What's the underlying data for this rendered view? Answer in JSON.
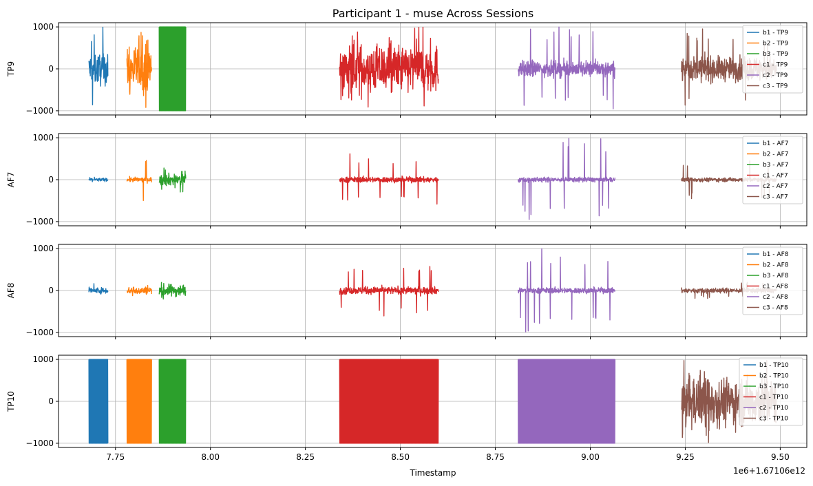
{
  "chart_data": {
    "type": "line",
    "title": "Participant 1 - muse Across Sessions",
    "xlabel": "Timestamp",
    "x_offset_label": "1e6+1.67106e12",
    "xlim": [
      7.6,
      9.57
    ],
    "x_ticks": [
      7.75,
      8.0,
      8.25,
      8.5,
      8.75,
      9.0,
      9.25,
      9.5
    ],
    "x_tick_labels": [
      "7.75",
      "8.00",
      "8.25",
      "8.50",
      "8.75",
      "9.00",
      "9.25",
      "9.50"
    ],
    "ylim": [
      -1100,
      1100
    ],
    "y_ticks": [
      1000,
      0,
      -1000
    ],
    "y_tick_labels": [
      "1000",
      "0",
      "−1000"
    ],
    "grid": true,
    "legend_position": "upper right",
    "sessions": [
      {
        "id": "b1",
        "color": "#1f77b4",
        "x_range": [
          7.68,
          7.73
        ]
      },
      {
        "id": "b2",
        "color": "#ff7f0e",
        "x_range": [
          7.78,
          7.845
        ]
      },
      {
        "id": "b3",
        "color": "#2ca02c",
        "x_range": [
          7.865,
          7.935
        ]
      },
      {
        "id": "c1",
        "color": "#d62728",
        "x_range": [
          8.34,
          8.6
        ]
      },
      {
        "id": "c2",
        "color": "#9467bd",
        "x_range": [
          8.81,
          9.065
        ]
      },
      {
        "id": "c3",
        "color": "#8c564b",
        "x_range": [
          9.24,
          9.49
        ]
      }
    ],
    "panels": [
      {
        "ylabel": "TP9",
        "legend": [
          "b1 - TP9",
          "b2 - TP9",
          "b3 - TP9",
          "c1 - TP9",
          "c2 - TP9",
          "c3 - TP9"
        ],
        "amplitude": [
          {
            "session": "b1",
            "typical": 400,
            "peak": 1000
          },
          {
            "session": "b2",
            "typical": 600,
            "peak": 1000
          },
          {
            "session": "b3",
            "typical": 1000,
            "peak": 1000
          },
          {
            "session": "c1",
            "typical": 600,
            "peak": 1000
          },
          {
            "session": "c2",
            "typical": 200,
            "peak": 1000
          },
          {
            "session": "c3",
            "typical": 300,
            "peak": 1000
          }
        ]
      },
      {
        "ylabel": "AF7",
        "legend": [
          "b1 - AF7",
          "b2 - AF7",
          "b3 - AF7",
          "c1 - AF7",
          "c2 - AF7",
          "c3 - AF7"
        ],
        "amplitude": [
          {
            "session": "b1",
            "typical": 40,
            "peak": 60
          },
          {
            "session": "b2",
            "typical": 60,
            "peak": 580
          },
          {
            "session": "b3",
            "typical": 150,
            "peak": 300
          },
          {
            "session": "c1",
            "typical": 70,
            "peak": 620
          },
          {
            "session": "c2",
            "typical": 60,
            "peak": 1000
          },
          {
            "session": "c3",
            "typical": 50,
            "peak": 460
          }
        ]
      },
      {
        "ylabel": "AF8",
        "legend": [
          "b1 - AF8",
          "b2 - AF8",
          "b3 - AF8",
          "c1 - AF8",
          "c2 - AF8",
          "c3 - AF8"
        ],
        "amplitude": [
          {
            "session": "b1",
            "typical": 70,
            "peak": 230
          },
          {
            "session": "b2",
            "typical": 90,
            "peak": 200
          },
          {
            "session": "b3",
            "typical": 150,
            "peak": 300
          },
          {
            "session": "c1",
            "typical": 90,
            "peak": 620
          },
          {
            "session": "c2",
            "typical": 70,
            "peak": 1000
          },
          {
            "session": "c3",
            "typical": 60,
            "peak": 200
          }
        ]
      },
      {
        "ylabel": "TP10",
        "legend": [
          "b1 - TP10",
          "b2 - TP10",
          "b3 - TP10",
          "c1 - TP10",
          "c2 - TP10",
          "c3 - TP10"
        ],
        "amplitude": [
          {
            "session": "b1",
            "typical": 1000,
            "peak": 1000
          },
          {
            "session": "b2",
            "typical": 1000,
            "peak": 1000
          },
          {
            "session": "b3",
            "typical": 1000,
            "peak": 1000
          },
          {
            "session": "c1",
            "typical": 1000,
            "peak": 1000
          },
          {
            "session": "c2",
            "typical": 1000,
            "peak": 1000
          },
          {
            "session": "c3",
            "typical": 600,
            "peak": 1000
          }
        ]
      }
    ]
  }
}
